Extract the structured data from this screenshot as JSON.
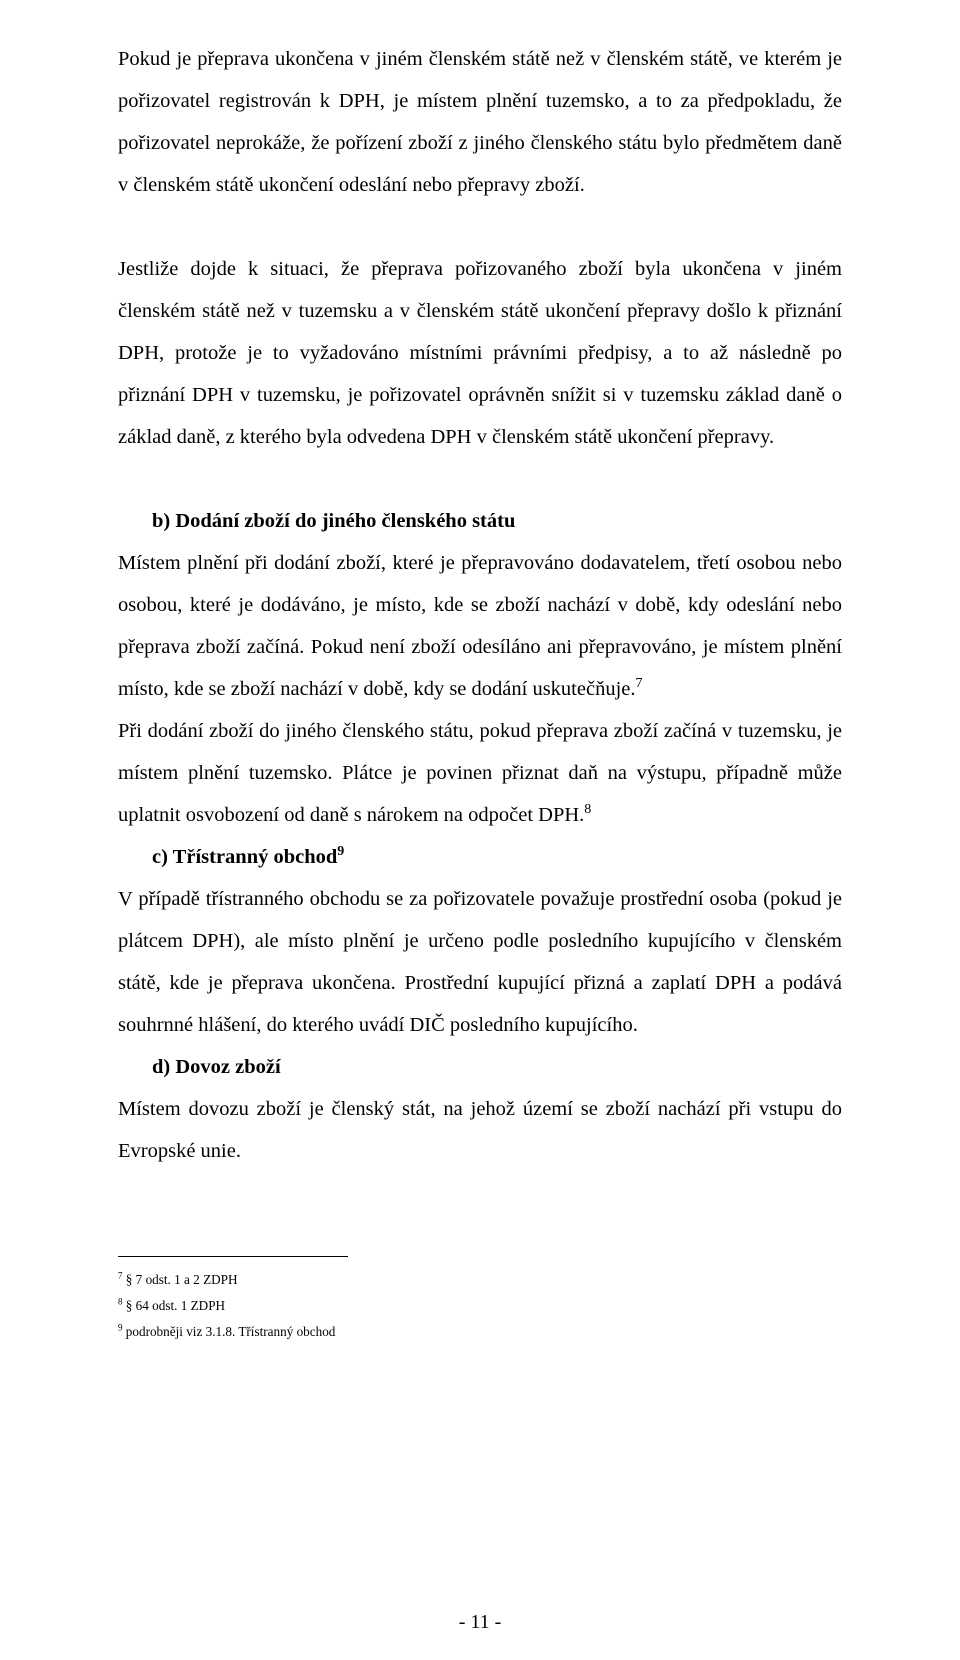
{
  "paragraphs": {
    "p1": "Pokud je přeprava ukončena v jiném členském státě než v členském státě, ve kterém je pořizovatel registrován k DPH, je místem plnění tuzemsko, a to za předpokladu, že pořizovatel neprokáže, že pořízení zboží z jiného členského státu bylo předmětem daně v členském státě ukončení odeslání nebo přepravy zboží.",
    "p2": "Jestliže dojde k situaci, že přeprava pořizovaného zboží byla ukončena v jiném členském státě než v tuzemsku a v členském státě ukončení přepravy došlo k přiznání DPH, protože je to vyžadováno místními právními předpisy, a to až následně po přiznání DPH v tuzemsku, je pořizovatel oprávněn snížit si v tuzemsku základ daně o základ daně, z kterého byla odvedena DPH v členském státě ukončení přepravy.",
    "b_heading": "b)  Dodání zboží do jiného členského státu",
    "p3": "Místem plnění při dodání zboží, které je přepravováno dodavatelem, třetí osobou nebo osobou, které je dodáváno, je místo, kde se zboží nachází v době, kdy odeslání nebo přeprava zboží začíná. Pokud není zboží odesíláno ani přepravováno, je místem plnění místo, kde se zboží nachází v době, kdy se dodání uskutečňuje.",
    "p3_sup": "7",
    "p4": "Při dodání zboží do jiného členského státu, pokud přeprava zboží začíná v tuzemsku, je místem plnění tuzemsko. Plátce je povinen přiznat daň na výstupu, případně může uplatnit osvobození od daně s nárokem na odpočet DPH.",
    "p4_sup": "8",
    "c_heading": "c)  Třístranný obchod",
    "c_sup": "9",
    "p5": "V případě třístranného obchodu se za pořizovatele považuje prostřední osoba (pokud je plátcem DPH), ale místo plnění je určeno podle posledního kupujícího v členském státě, kde je přeprava ukončena. Prostřední kupující přizná a zaplatí DPH a podává souhrnné hlášení, do kterého uvádí DIČ posledního kupujícího.",
    "d_heading": "d)  Dovoz zboží",
    "p6": "Místem dovozu zboží je členský stát, na jehož území se zboží nachází při vstupu do Evropské unie."
  },
  "footnotes": {
    "f7": "§ 7 odst. 1 a 2 ZDPH",
    "f8": "§ 64 odst. 1 ZDPH",
    "f9": "podrobněji viz 3.1.8. Třístranný obchod"
  },
  "footnote_nums": {
    "n7": "7",
    "n8": "8",
    "n9": "9"
  },
  "page_number": "- 11 -"
}
